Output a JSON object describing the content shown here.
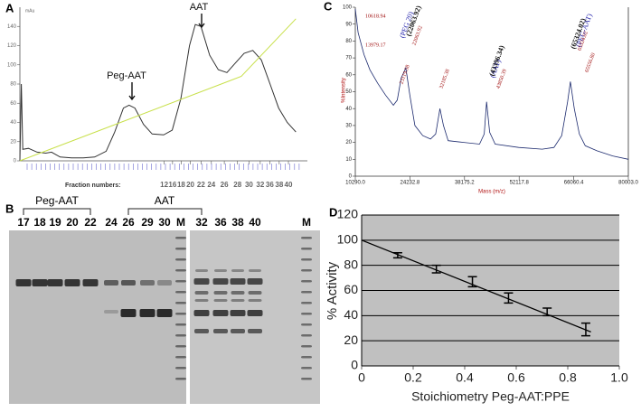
{
  "panel_labels": [
    "A",
    "B",
    "C",
    "D"
  ],
  "chart_data": [
    {
      "type": "line",
      "y_label": "mAu",
      "x_label": "Fraction numbers:",
      "annotations": [
        "Peg-AAT",
        "AAT"
      ],
      "xlim": [
        0,
        100
      ],
      "ylim": [
        0,
        160
      ],
      "yticks": [
        0,
        20,
        40,
        60,
        80,
        100,
        120,
        140
      ],
      "xticks": [
        {
          "value": 50.2,
          "label": "12"
        },
        {
          "value": 53.1,
          "label": "16"
        },
        {
          "value": 56.1,
          "label": "18"
        },
        {
          "value": 59.3,
          "label": "20"
        },
        {
          "value": 63,
          "label": "22"
        },
        {
          "value": 66.6,
          "label": "24"
        },
        {
          "value": 71.1,
          "label": "26"
        },
        {
          "value": 75.7,
          "label": "28"
        },
        {
          "value": 79.7,
          "label": "30"
        },
        {
          "value": 83.6,
          "label": "32"
        },
        {
          "value": 86.9,
          "label": "36"
        },
        {
          "value": 90.2,
          "label": "38"
        },
        {
          "value": 93.4,
          "label": "40"
        }
      ],
      "series": [
        {
          "color": "#333333",
          "x": [
            0,
            0.5,
            1,
            3,
            6,
            9,
            11,
            14,
            18,
            22,
            26,
            30,
            33,
            36,
            38,
            40,
            43,
            46,
            50,
            53,
            56,
            59,
            61,
            63,
            66,
            69,
            72,
            75,
            78,
            81,
            84,
            87,
            90,
            93,
            96
          ],
          "values": [
            0,
            80,
            12,
            13,
            9,
            8,
            9,
            4,
            3,
            3,
            4,
            10,
            30,
            55,
            58,
            55,
            38,
            28,
            27,
            32,
            65,
            120,
            142,
            140,
            110,
            95,
            92,
            102,
            112,
            115,
            105,
            80,
            55,
            40,
            30
          ]
        },
        {
          "color": "#c8e04a",
          "x": [
            0,
            77,
            96
          ],
          "values": [
            0,
            88,
            148
          ]
        }
      ]
    },
    {
      "type": "line",
      "y_label": "%Intensity",
      "x_label": "Mass (m/z)",
      "annotations": [
        {
          "text": "10618.94",
          "color": "#a01010"
        },
        {
          "text": "13979.17",
          "color": "#a01010"
        },
        {
          "text": "(PEG 20)",
          "color": "#1a1aa8"
        },
        {
          "text": "(22063.92)",
          "color": "#111111"
        },
        {
          "text": "22063.92",
          "color": "#a01010"
        },
        {
          "text": "23119.58",
          "color": "#a01010"
        },
        {
          "text": "32185.38",
          "color": "#a01010"
        },
        {
          "text": "(AAT)",
          "color": "#1a1aa8"
        },
        {
          "text": "(43396.34)",
          "color": "#111111"
        },
        {
          "text": "43850.39",
          "color": "#a01010"
        },
        {
          "text": "(PEG-AAT)",
          "color": "#1a1aa8"
        },
        {
          "text": "(65324.02)",
          "color": "#111111"
        },
        {
          "text": "65324.02",
          "color": "#a01010"
        },
        {
          "text": "65556.80",
          "color": "#a01010"
        }
      ],
      "xlim": [
        10290,
        80003
      ],
      "xticks": [
        {
          "value": 10290,
          "label": "10290.0"
        },
        24232.8,
        38175.2,
        52117.8,
        66060.4,
        {
          "value": 80003,
          "label": "80003.0"
        }
      ],
      "ylim": [
        0,
        100
      ],
      "yticks": [
        0,
        10,
        20,
        30,
        40,
        50,
        60,
        70,
        80,
        90,
        100
      ],
      "series": [
        {
          "color": "#1c2a6e",
          "x": [
            10290,
            11000,
            12500,
            14000,
            16000,
            18000,
            20000,
            21000,
            22000,
            23200,
            24200,
            25500,
            27500,
            29500,
            30800,
            31900,
            32800,
            34000,
            38000,
            42000,
            43200,
            43800,
            44600,
            46000,
            52000,
            58000,
            61000,
            63000,
            64500,
            65200,
            66200,
            67500,
            69000,
            72000,
            76000,
            80003
          ],
          "values": [
            99,
            85,
            72,
            63,
            55,
            48,
            42,
            45,
            58,
            64,
            48,
            30,
            24,
            22,
            25,
            40,
            30,
            21,
            20,
            19,
            25,
            44,
            26,
            19,
            17,
            16,
            17,
            24,
            44,
            56,
            40,
            25,
            18,
            15,
            12,
            10
          ]
        }
      ]
    },
    {
      "type": "errorbar",
      "y_label": "% Activity",
      "x_label": "Stoichiometry Peg-AAT:PPE",
      "xlim": [
        0,
        1
      ],
      "xticks": [
        0,
        0.2,
        0.4,
        0.6,
        0.8,
        {
          "value": 1,
          "label": "1.0"
        }
      ],
      "ylim": [
        0,
        120
      ],
      "yticks": [
        0,
        20,
        40,
        60,
        80,
        100,
        120
      ],
      "grid": true,
      "background": "#c0c0c0",
      "color": "#000000",
      "x": [
        0.14,
        0.29,
        0.43,
        0.57,
        0.72,
        0.87
      ],
      "values": [
        88,
        77,
        67,
        54,
        43,
        29
      ],
      "errors": [
        2,
        3,
        4,
        4,
        3,
        5
      ],
      "trendline": {
        "x": [
          0,
          0.89
        ],
        "values": [
          100,
          27
        ]
      }
    }
  ],
  "gel": {
    "groups": [
      "Peg-AAT",
      "AAT"
    ],
    "lanes": [
      "17",
      "18",
      "19",
      "20",
      "22",
      "24",
      "26",
      "29",
      "30",
      "M",
      "32",
      "36",
      "38",
      "40",
      "M"
    ]
  }
}
